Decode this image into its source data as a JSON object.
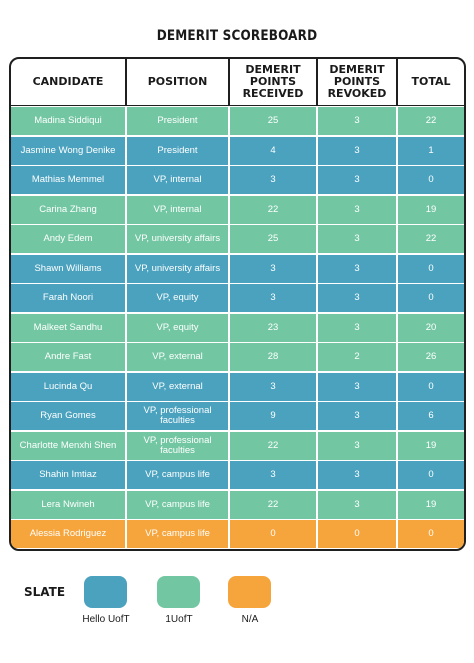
{
  "title": "DEMERIT SCOREBOARD",
  "colors": {
    "slate_hello_uoft": "#4aa2bf",
    "slate_1uoft": "#72c7a2",
    "slate_na": "#f6a53c"
  },
  "table": {
    "headers": [
      "CANDIDATE",
      "POSITION",
      "DEMERIT POINTS RECEIVED",
      "DEMERIT POINTS REVOKED",
      "TOTAL"
    ],
    "rows": [
      {
        "candidate": "Madina Siddiqui",
        "position": "President",
        "received": "25",
        "revoked": "3",
        "total": "22",
        "slate": "1UofT"
      },
      {
        "candidate": "Jasmine Wong Denike",
        "position": "President",
        "received": "4",
        "revoked": "3",
        "total": "1",
        "slate": "Hello UofT"
      },
      {
        "candidate": "Mathias Memmel",
        "position": "VP, internal",
        "received": "3",
        "revoked": "3",
        "total": "0",
        "slate": "Hello UofT"
      },
      {
        "candidate": "Carina Zhang",
        "position": "VP, internal",
        "received": "22",
        "revoked": "3",
        "total": "19",
        "slate": "1UofT"
      },
      {
        "candidate": "Andy Edem",
        "position": "VP, university affairs",
        "received": "25",
        "revoked": "3",
        "total": "22",
        "slate": "1UofT"
      },
      {
        "candidate": "Shawn Williams",
        "position": "VP, university affairs",
        "received": "3",
        "revoked": "3",
        "total": "0",
        "slate": "Hello UofT"
      },
      {
        "candidate": "Farah Noori",
        "position": "VP, equity",
        "received": "3",
        "revoked": "3",
        "total": "0",
        "slate": "Hello UofT"
      },
      {
        "candidate": "Malkeet Sandhu",
        "position": "VP, equity",
        "received": "23",
        "revoked": "3",
        "total": "20",
        "slate": "1UofT"
      },
      {
        "candidate": "Andre Fast",
        "position": "VP, external",
        "received": "28",
        "revoked": "2",
        "total": "26",
        "slate": "1UofT"
      },
      {
        "candidate": "Lucinda Qu",
        "position": "VP, external",
        "received": "3",
        "revoked": "3",
        "total": "0",
        "slate": "Hello UofT"
      },
      {
        "candidate": "Ryan Gomes",
        "position": "VP, professional faculties",
        "received": "9",
        "revoked": "3",
        "total": "6",
        "slate": "Hello UofT"
      },
      {
        "candidate": "Charlotte Menxhi Shen",
        "position": "VP, professional faculties",
        "received": "22",
        "revoked": "3",
        "total": "19",
        "slate": "1UofT"
      },
      {
        "candidate": "Shahin Imtiaz",
        "position": "VP, campus life",
        "received": "3",
        "revoked": "3",
        "total": "0",
        "slate": "Hello UofT"
      },
      {
        "candidate": "Lera Nwineh",
        "position": "VP, campus life",
        "received": "22",
        "revoked": "3",
        "total": "19",
        "slate": "1UofT"
      },
      {
        "candidate": "Alessia Rodriguez",
        "position": "VP, campus life",
        "received": "0",
        "revoked": "0",
        "total": "0",
        "slate": "N/A"
      }
    ]
  },
  "legend": {
    "title": "SLATE",
    "items": [
      {
        "label": "Hello UofT",
        "color": "#4aa2bf"
      },
      {
        "label": "1UofT",
        "color": "#72c7a2"
      },
      {
        "label": "N/A",
        "color": "#f6a53c"
      }
    ]
  }
}
